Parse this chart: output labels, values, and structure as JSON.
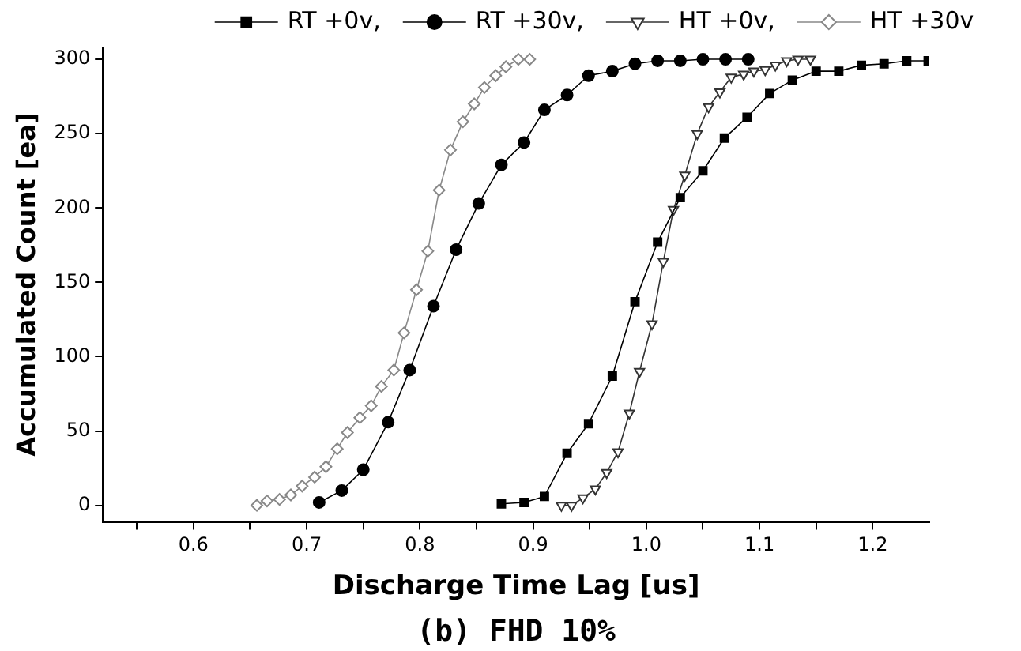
{
  "chart_data": {
    "type": "line",
    "xlabel": "Discharge Time Lag [us]",
    "ylabel": "Accumulated Count [ea]",
    "annotations": [
      "(b) FHD 10%"
    ],
    "xlim": [
      0.52,
      1.25
    ],
    "xticks": [
      {
        "value": 0.55,
        "label": null
      },
      0.6,
      {
        "value": 0.65,
        "label": null
      },
      0.7,
      {
        "value": 0.75,
        "label": null
      },
      0.8,
      {
        "value": 0.85,
        "label": null
      },
      0.9,
      {
        "value": 0.95,
        "label": null
      },
      {
        "value": 1.0,
        "label": "1.0"
      },
      {
        "value": 1.05,
        "label": null
      },
      1.1,
      {
        "value": 1.15,
        "label": null
      },
      1.2
    ],
    "ylim": [
      -11,
      308
    ],
    "yticks": [
      0,
      50,
      100,
      150,
      200,
      250,
      300
    ],
    "grid": false,
    "legend": "top",
    "line_style": "solid",
    "series": [
      {
        "name": "RT +0v,",
        "color": "#000000",
        "marker": "square",
        "x": [
          0.872,
          0.892,
          0.91,
          0.93,
          0.949,
          0.97,
          0.99,
          1.01,
          1.03,
          1.05,
          1.069,
          1.089,
          1.109,
          1.129,
          1.15,
          1.17,
          1.19,
          1.21,
          1.23,
          1.249
        ],
        "values": [
          1,
          2,
          6,
          35,
          55,
          87,
          137,
          177,
          207,
          225,
          247,
          261,
          277,
          286,
          292,
          292,
          296,
          297,
          299,
          299
        ]
      },
      {
        "name": "RT +30v,",
        "color": "#000000",
        "marker": "circle",
        "x": [
          0.711,
          0.731,
          0.75,
          0.772,
          0.791,
          0.812,
          0.832,
          0.852,
          0.872,
          0.892,
          0.91,
          0.93,
          0.949,
          0.97,
          0.99,
          1.01,
          1.03,
          1.05,
          1.07,
          1.09
        ],
        "values": [
          2,
          10,
          24,
          56,
          91,
          134,
          172,
          203,
          229,
          244,
          266,
          276,
          289,
          292,
          297,
          299,
          299,
          300,
          300,
          300
        ]
      },
      {
        "name": "HT +0v,",
        "color": "#333333",
        "marker": "triangle",
        "x": [
          0.925,
          0.934,
          0.944,
          0.955,
          0.965,
          0.975,
          0.985,
          0.994,
          1.005,
          1.015,
          1.024,
          1.034,
          1.045,
          1.055,
          1.065,
          1.075,
          1.086,
          1.095,
          1.105,
          1.114,
          1.124,
          1.134,
          1.145
        ],
        "values": [
          0,
          0,
          5,
          11,
          22,
          36,
          62,
          90,
          122,
          164,
          199,
          222,
          250,
          268,
          278,
          288,
          290,
          292,
          293,
          296,
          299,
          300,
          300
        ]
      },
      {
        "name": "HT +30v",
        "color": "#888888",
        "marker": "diamond",
        "x": [
          0.656,
          0.665,
          0.676,
          0.686,
          0.696,
          0.707,
          0.717,
          0.727,
          0.736,
          0.747,
          0.757,
          0.766,
          0.777,
          0.786,
          0.797,
          0.807,
          0.817,
          0.827,
          0.838,
          0.848,
          0.857,
          0.867,
          0.876,
          0.887,
          0.897
        ],
        "values": [
          0,
          3,
          4,
          7,
          13,
          19,
          26,
          38,
          49,
          59,
          67,
          80,
          91,
          116,
          145,
          171,
          212,
          239,
          258,
          270,
          281,
          289,
          295,
          300,
          300
        ]
      }
    ]
  }
}
